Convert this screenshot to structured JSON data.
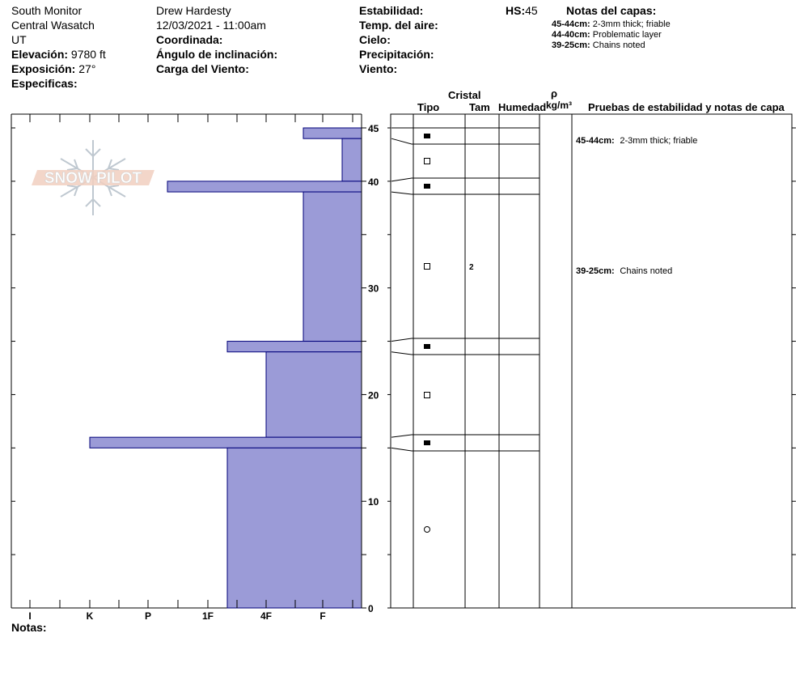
{
  "location": {
    "name": "South Monitor",
    "range": "Central Wasatch",
    "state": "UT"
  },
  "elevation": {
    "label": "Elevación:",
    "value": "9780 ft"
  },
  "exposure": {
    "label": "Exposición:",
    "value": "27°"
  },
  "specifics": {
    "label": "Especificas:"
  },
  "observer": {
    "name": "Drew Hardesty",
    "datetime": "12/03/2021 - 11:00am"
  },
  "fields_mid": {
    "coord": "Coordinada:",
    "slope": "Ángulo de inclinación:",
    "wind_load": "Carga del Viento:"
  },
  "fields_right": {
    "stability": "Estabilidad:",
    "air_temp": "Temp. del aire:",
    "sky": "Cielo:",
    "precip": "Precipitación:",
    "wind": "Viento:"
  },
  "hs": {
    "label": "HS:",
    "value": "45"
  },
  "layer_notes": {
    "title": "Notas del capas:",
    "items": [
      {
        "range": "45-44cm:",
        "text": "2-3mm thick; friable"
      },
      {
        "range": "44-40cm:",
        "text": "Problematic layer"
      },
      {
        "range": "39-25cm:",
        "text": "Chains noted"
      }
    ]
  },
  "logo": {
    "text": "SNOW PILOT"
  },
  "footer": {
    "notes_label": "Notas:"
  },
  "table_headers": {
    "crystal": "Cristal",
    "type": "Tipo",
    "size": "Tam",
    "moisture": "Humedad",
    "density_symbol": "ρ",
    "density_unit": "kg/m³",
    "tests": "Pruebas de estabilidad y notas de capa"
  },
  "chart_data": {
    "type": "bar",
    "orientation": "horizontal",
    "x_axis": {
      "label_ticks": [
        "I",
        "K",
        "P",
        "1F",
        "4F",
        "F"
      ]
    },
    "y_axis": {
      "ylim": [
        0,
        45
      ],
      "ticks": [
        0,
        10,
        20,
        30,
        40,
        45
      ],
      "unit": "cm"
    },
    "hardness_layers": [
      {
        "top": 45,
        "bottom": 44,
        "hardness": "F+"
      },
      {
        "top": 44,
        "bottom": 40,
        "hardness": "F-"
      },
      {
        "top": 40,
        "bottom": 39,
        "hardness": "P-"
      },
      {
        "top": 39,
        "bottom": 25,
        "hardness": "F+"
      },
      {
        "top": 25,
        "bottom": 24,
        "hardness": "1F-"
      },
      {
        "top": 24,
        "bottom": 16,
        "hardness": "4F"
      },
      {
        "top": 16,
        "bottom": 15,
        "hardness": "K"
      },
      {
        "top": 15,
        "bottom": 0,
        "hardness": "1F-"
      }
    ],
    "boundaries": [
      45,
      44,
      40,
      39,
      25,
      24,
      16,
      15,
      0
    ],
    "grains": [
      {
        "height": 44.25,
        "symbol": "filled-square"
      },
      {
        "height": 41.5,
        "symbol": "open-square"
      },
      {
        "height": 39.5,
        "symbol": "filled-square"
      },
      {
        "height": 32,
        "symbol": "open-square"
      },
      {
        "height": 24.5,
        "symbol": "filled-square"
      },
      {
        "height": 20,
        "symbol": "open-square"
      },
      {
        "height": 15.5,
        "symbol": "filled-square"
      },
      {
        "height": 7.5,
        "symbol": "circle"
      }
    ],
    "sizes": [
      {
        "height": 32,
        "value": "2"
      }
    ],
    "notes": [
      {
        "height": 43.5,
        "range": "45-44cm:",
        "text": "2-3mm thick; friable"
      },
      {
        "height": 31.3,
        "range": "39-25cm:",
        "text": "Chains noted"
      }
    ],
    "colors": {
      "bar_fill": "#9b9bd7",
      "bar_stroke": "#00007a"
    }
  }
}
